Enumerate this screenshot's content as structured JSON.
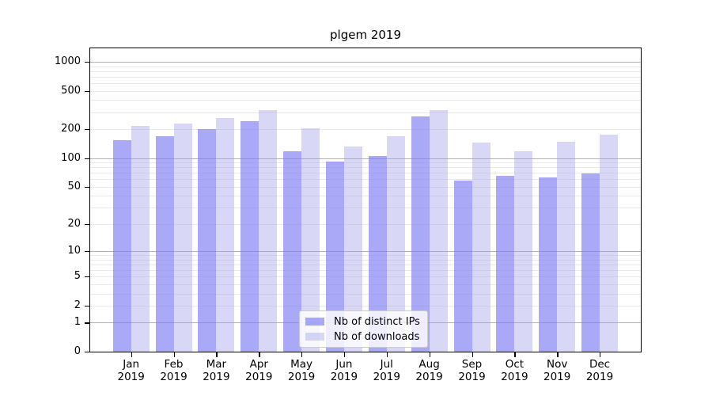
{
  "chart_data": {
    "type": "bar",
    "title": "plgem 2019",
    "categories": [
      "Jan",
      "Feb",
      "Mar",
      "Apr",
      "May",
      "Jun",
      "Jul",
      "Aug",
      "Sep",
      "Oct",
      "Nov",
      "Dec"
    ],
    "year_label": "2019",
    "series": [
      {
        "name": "Nb of distinct IPs",
        "fill": "rgba(124,124,244,0.66)",
        "color_hex": "#a8a8f8",
        "values": [
          154,
          170,
          200,
          242,
          118,
          92,
          105,
          270,
          58,
          65,
          63,
          69
        ]
      },
      {
        "name": "Nb of downloads",
        "fill": "rgba(158,158,232,0.40)",
        "color_hex": "#d8d8f8",
        "values": [
          218,
          230,
          260,
          314,
          205,
          133,
          169,
          318,
          145,
          118,
          148,
          175
        ]
      }
    ],
    "y_axis": {
      "scale": "log10(1+x)",
      "ticks": [
        0,
        1,
        2,
        5,
        10,
        20,
        50,
        100,
        200,
        500,
        1000
      ],
      "major_gridlines": [
        1,
        10,
        100,
        1000
      ],
      "minor_gridlines": [
        2,
        3,
        4,
        5,
        6,
        7,
        8,
        9,
        20,
        30,
        40,
        50,
        60,
        70,
        80,
        90,
        200,
        300,
        400,
        500,
        600,
        700,
        800,
        900
      ],
      "ylim": [
        0,
        1377
      ]
    },
    "legend": {
      "position": "inside-bottom-center",
      "entries": [
        "Nb of distinct IPs",
        "Nb of downloads"
      ]
    },
    "grid": "on"
  }
}
